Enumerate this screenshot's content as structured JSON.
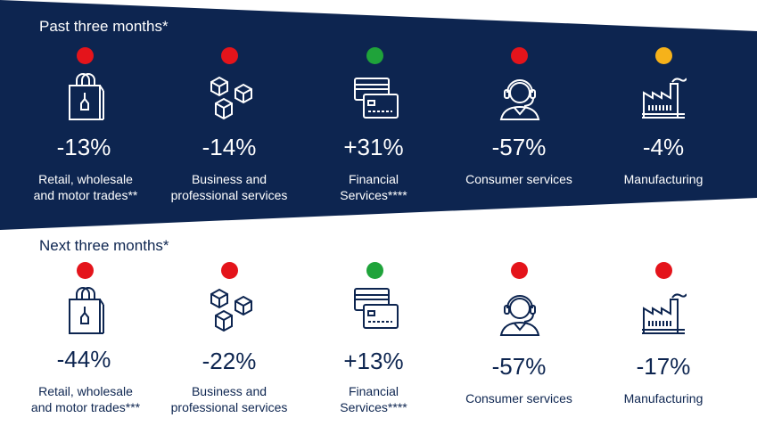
{
  "past": {
    "title": "Past three months*",
    "items": [
      {
        "value": "-13%",
        "label1": "Retail, wholesale",
        "label2": "and motor trades**",
        "status": "red",
        "icon": "shopping-bag-icon"
      },
      {
        "value": "-14%",
        "label1": "Business and",
        "label2": "professional services",
        "status": "red",
        "icon": "boxes-icon"
      },
      {
        "value": "+31%",
        "label1": "Financial",
        "label2": "Services****",
        "status": "green",
        "icon": "credit-cards-icon"
      },
      {
        "value": "-57%",
        "label1": "",
        "label2": "Consumer services",
        "status": "red",
        "icon": "headset-person-icon"
      },
      {
        "value": "-4%",
        "label1": "",
        "label2": "Manufacturing",
        "status": "amber",
        "icon": "factory-icon"
      }
    ]
  },
  "next": {
    "title": "Next three months*",
    "items": [
      {
        "value": "-44%",
        "label1": "Retail, wholesale",
        "label2": "and motor trades***",
        "status": "red",
        "icon": "shopping-bag-icon"
      },
      {
        "value": "-22%",
        "label1": "Business and",
        "label2": "professional services",
        "status": "red",
        "icon": "boxes-icon"
      },
      {
        "value": "+13%",
        "label1": "Financial",
        "label2": "Services****",
        "status": "green",
        "icon": "credit-cards-icon"
      },
      {
        "value": "-57%",
        "label1": "",
        "label2": "Consumer services",
        "status": "red",
        "icon": "headset-person-icon"
      },
      {
        "value": "-17%",
        "label1": "",
        "label2": "Manufacturing",
        "status": "red",
        "icon": "factory-icon"
      }
    ]
  },
  "colors": {
    "navy": "#0d2550",
    "red": "#e4141b",
    "green": "#1fa33a",
    "amber": "#f6b21a"
  }
}
